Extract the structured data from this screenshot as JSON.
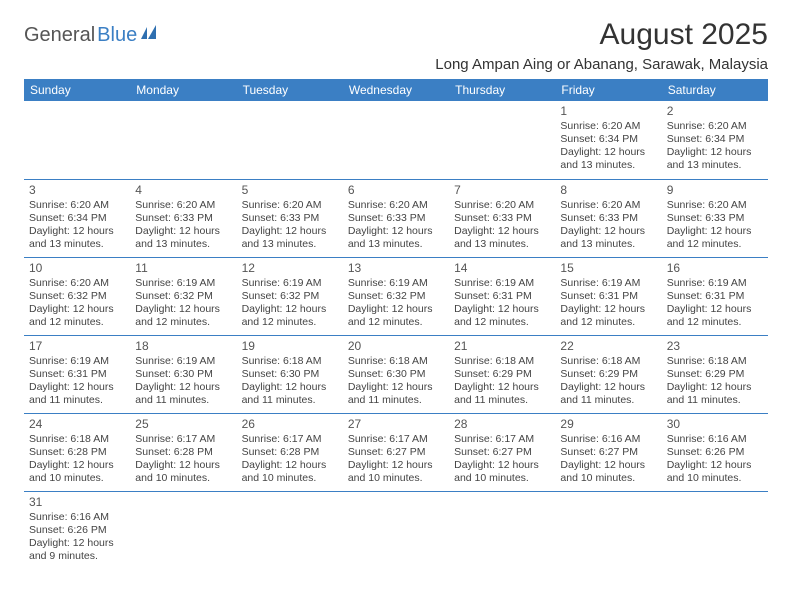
{
  "logo": {
    "part1": "General",
    "part2": "Blue"
  },
  "title": "August 2025",
  "location": "Long Ampan Aing or Abanang, Sarawak, Malaysia",
  "header_bg": "#3b7fc4",
  "days": [
    "Sunday",
    "Monday",
    "Tuesday",
    "Wednesday",
    "Thursday",
    "Friday",
    "Saturday"
  ],
  "weeks": [
    [
      null,
      null,
      null,
      null,
      null,
      {
        "n": "1",
        "sr": "6:20 AM",
        "ss": "6:34 PM",
        "dl": "12 hours and 13 minutes."
      },
      {
        "n": "2",
        "sr": "6:20 AM",
        "ss": "6:34 PM",
        "dl": "12 hours and 13 minutes."
      }
    ],
    [
      {
        "n": "3",
        "sr": "6:20 AM",
        "ss": "6:34 PM",
        "dl": "12 hours and 13 minutes."
      },
      {
        "n": "4",
        "sr": "6:20 AM",
        "ss": "6:33 PM",
        "dl": "12 hours and 13 minutes."
      },
      {
        "n": "5",
        "sr": "6:20 AM",
        "ss": "6:33 PM",
        "dl": "12 hours and 13 minutes."
      },
      {
        "n": "6",
        "sr": "6:20 AM",
        "ss": "6:33 PM",
        "dl": "12 hours and 13 minutes."
      },
      {
        "n": "7",
        "sr": "6:20 AM",
        "ss": "6:33 PM",
        "dl": "12 hours and 13 minutes."
      },
      {
        "n": "8",
        "sr": "6:20 AM",
        "ss": "6:33 PM",
        "dl": "12 hours and 13 minutes."
      },
      {
        "n": "9",
        "sr": "6:20 AM",
        "ss": "6:33 PM",
        "dl": "12 hours and 12 minutes."
      }
    ],
    [
      {
        "n": "10",
        "sr": "6:20 AM",
        "ss": "6:32 PM",
        "dl": "12 hours and 12 minutes."
      },
      {
        "n": "11",
        "sr": "6:19 AM",
        "ss": "6:32 PM",
        "dl": "12 hours and 12 minutes."
      },
      {
        "n": "12",
        "sr": "6:19 AM",
        "ss": "6:32 PM",
        "dl": "12 hours and 12 minutes."
      },
      {
        "n": "13",
        "sr": "6:19 AM",
        "ss": "6:32 PM",
        "dl": "12 hours and 12 minutes."
      },
      {
        "n": "14",
        "sr": "6:19 AM",
        "ss": "6:31 PM",
        "dl": "12 hours and 12 minutes."
      },
      {
        "n": "15",
        "sr": "6:19 AM",
        "ss": "6:31 PM",
        "dl": "12 hours and 12 minutes."
      },
      {
        "n": "16",
        "sr": "6:19 AM",
        "ss": "6:31 PM",
        "dl": "12 hours and 12 minutes."
      }
    ],
    [
      {
        "n": "17",
        "sr": "6:19 AM",
        "ss": "6:31 PM",
        "dl": "12 hours and 11 minutes."
      },
      {
        "n": "18",
        "sr": "6:19 AM",
        "ss": "6:30 PM",
        "dl": "12 hours and 11 minutes."
      },
      {
        "n": "19",
        "sr": "6:18 AM",
        "ss": "6:30 PM",
        "dl": "12 hours and 11 minutes."
      },
      {
        "n": "20",
        "sr": "6:18 AM",
        "ss": "6:30 PM",
        "dl": "12 hours and 11 minutes."
      },
      {
        "n": "21",
        "sr": "6:18 AM",
        "ss": "6:29 PM",
        "dl": "12 hours and 11 minutes."
      },
      {
        "n": "22",
        "sr": "6:18 AM",
        "ss": "6:29 PM",
        "dl": "12 hours and 11 minutes."
      },
      {
        "n": "23",
        "sr": "6:18 AM",
        "ss": "6:29 PM",
        "dl": "12 hours and 11 minutes."
      }
    ],
    [
      {
        "n": "24",
        "sr": "6:18 AM",
        "ss": "6:28 PM",
        "dl": "12 hours and 10 minutes."
      },
      {
        "n": "25",
        "sr": "6:17 AM",
        "ss": "6:28 PM",
        "dl": "12 hours and 10 minutes."
      },
      {
        "n": "26",
        "sr": "6:17 AM",
        "ss": "6:28 PM",
        "dl": "12 hours and 10 minutes."
      },
      {
        "n": "27",
        "sr": "6:17 AM",
        "ss": "6:27 PM",
        "dl": "12 hours and 10 minutes."
      },
      {
        "n": "28",
        "sr": "6:17 AM",
        "ss": "6:27 PM",
        "dl": "12 hours and 10 minutes."
      },
      {
        "n": "29",
        "sr": "6:16 AM",
        "ss": "6:27 PM",
        "dl": "12 hours and 10 minutes."
      },
      {
        "n": "30",
        "sr": "6:16 AM",
        "ss": "6:26 PM",
        "dl": "12 hours and 10 minutes."
      }
    ],
    [
      {
        "n": "31",
        "sr": "6:16 AM",
        "ss": "6:26 PM",
        "dl": "12 hours and 9 minutes."
      },
      null,
      null,
      null,
      null,
      null,
      null
    ]
  ],
  "labels": {
    "sunrise": "Sunrise:",
    "sunset": "Sunset:",
    "daylight": "Daylight:"
  }
}
